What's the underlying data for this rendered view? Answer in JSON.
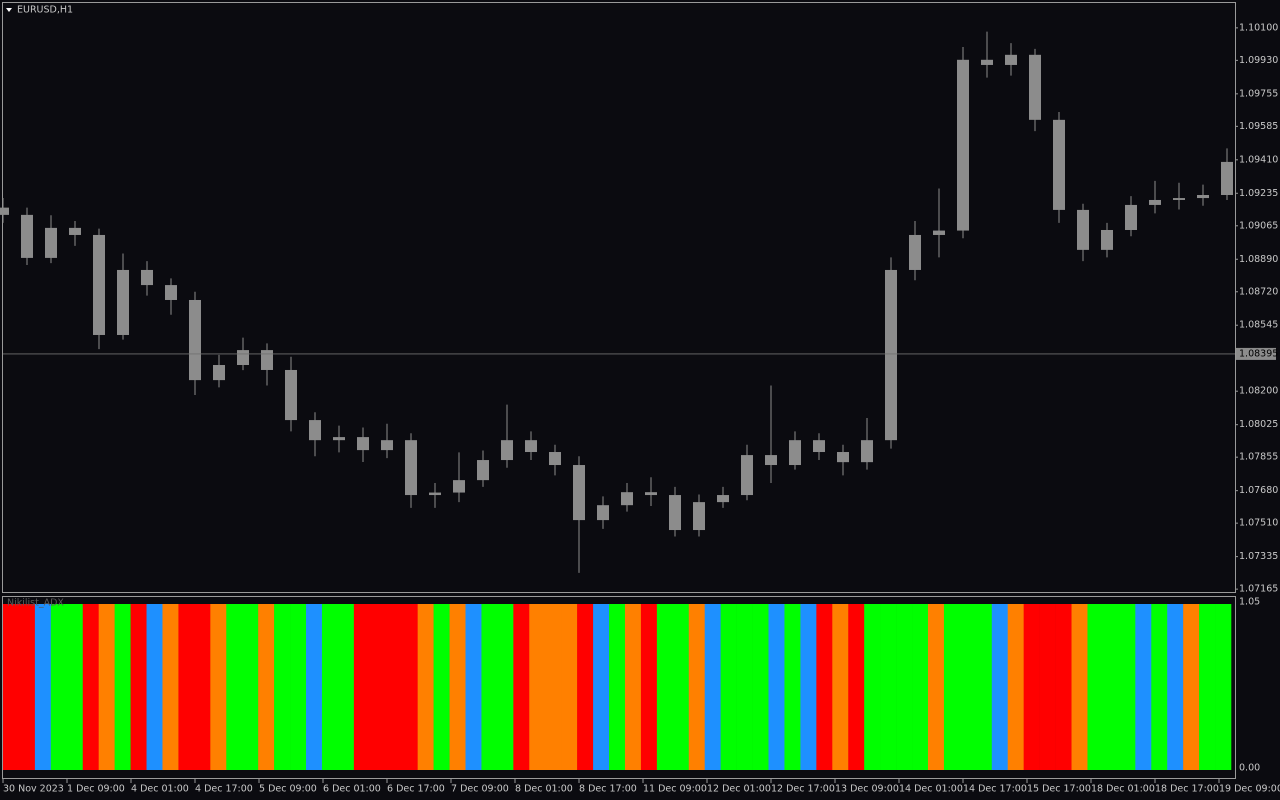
{
  "chart_data": [
    {
      "type": "candlestick",
      "title": "EURUSD,H1",
      "color": "#8c8c8c",
      "x": [
        0,
        6,
        12,
        18,
        24,
        30,
        36,
        42,
        48,
        54,
        60,
        66,
        72,
        78,
        84,
        90,
        96,
        102,
        108,
        114,
        120,
        126,
        132,
        138,
        144,
        150,
        156,
        162,
        168,
        174,
        180,
        186,
        192,
        198,
        204,
        210,
        216,
        222,
        228,
        234,
        240,
        246,
        252,
        258,
        264,
        270,
        276,
        282,
        288,
        294,
        300,
        306
      ],
      "open": [
        1.0916,
        1.09122,
        1.08897,
        1.09054,
        1.09017,
        1.08494,
        1.08834,
        1.08755,
        1.08677,
        1.08258,
        1.08337,
        1.08415,
        1.08311,
        1.08049,
        1.07944,
        1.0796,
        1.07892,
        1.07944,
        1.07657,
        1.0767,
        1.07735,
        1.0784,
        1.07944,
        1.07882,
        1.07814,
        1.07526,
        1.07604,
        1.07672,
        1.07657,
        1.07474,
        1.0762,
        1.07657,
        1.07866,
        1.07814,
        1.07944,
        1.07882,
        1.07829,
        1.07944,
        1.08834,
        1.09017,
        1.0904,
        1.09933,
        1.09906,
        1.09959,
        1.09619,
        1.09148,
        1.08939,
        1.09043,
        1.09174,
        1.092,
        1.0921,
        1.09226
      ],
      "high": [
        1.0921,
        1.0916,
        1.0912,
        1.0909,
        1.0905,
        1.0892,
        1.0888,
        1.0879,
        1.0872,
        1.0839,
        1.0848,
        1.0845,
        1.0838,
        1.0809,
        1.0802,
        1.0801,
        1.0803,
        1.0798,
        1.0772,
        1.0788,
        1.0789,
        1.0813,
        1.0799,
        1.0792,
        1.0786,
        1.0765,
        1.0772,
        1.0775,
        1.077,
        1.0766,
        1.077,
        1.0792,
        1.0823,
        1.0799,
        1.0798,
        1.0792,
        1.0806,
        1.089,
        1.0909,
        1.0926,
        1.1,
        1.1008,
        1.1002,
        1.0999,
        1.0966,
        1.0918,
        1.0908,
        1.0922,
        1.093,
        1.0929,
        1.0928,
        1.0947
      ],
      "low": [
        1.0908,
        1.0886,
        1.0887,
        1.0896,
        1.0842,
        1.0847,
        1.087,
        1.086,
        1.0818,
        1.0822,
        1.0831,
        1.0823,
        1.0799,
        1.0786,
        1.0788,
        1.0783,
        1.0785,
        1.0759,
        1.0759,
        1.0762,
        1.077,
        1.078,
        1.0784,
        1.0776,
        1.0725,
        1.0748,
        1.0757,
        1.076,
        1.0744,
        1.0744,
        1.0759,
        1.0763,
        1.0772,
        1.0779,
        1.0784,
        1.0776,
        1.0779,
        1.079,
        1.0878,
        1.089,
        1.09,
        1.0984,
        1.0985,
        1.0956,
        1.0908,
        1.0888,
        1.089,
        1.0901,
        1.0913,
        1.0915,
        1.0917,
        1.092
      ],
      "close": [
        1.09122,
        1.08897,
        1.09054,
        1.09017,
        1.08494,
        1.08834,
        1.08755,
        1.08677,
        1.08258,
        1.08337,
        1.08415,
        1.08311,
        1.08049,
        1.07944,
        1.0796,
        1.07892,
        1.07944,
        1.07657,
        1.0767,
        1.07735,
        1.0784,
        1.07944,
        1.07882,
        1.07814,
        1.07526,
        1.07604,
        1.07672,
        1.07657,
        1.07474,
        1.0762,
        1.07657,
        1.07866,
        1.07814,
        1.07944,
        1.07882,
        1.07829,
        1.07944,
        1.08834,
        1.09017,
        1.0904,
        1.09933,
        1.09906,
        1.09959,
        1.09619,
        1.09148,
        1.08939,
        1.09043,
        1.09174,
        1.092,
        1.0921,
        1.09226,
        1.09399
      ],
      "xlim": [
        0,
        307
      ],
      "ylim": [
        1.0715,
        1.1023
      ],
      "yticks": [
        {
          "value": 1.101,
          "label": "1.10100"
        },
        {
          "value": 1.0993,
          "label": "1.09930"
        },
        {
          "value": 1.09755,
          "label": "1.09755"
        },
        {
          "value": 1.09585,
          "label": "1.09585"
        },
        {
          "value": 1.0941,
          "label": "1.09410"
        },
        {
          "value": 1.09235,
          "label": "1.09235"
        },
        {
          "value": 1.09065,
          "label": "1.09065"
        },
        {
          "value": 1.0889,
          "label": "1.08890"
        },
        {
          "value": 1.0872,
          "label": "1.08720"
        },
        {
          "value": 1.08545,
          "label": "1.08545"
        },
        {
          "value": 1.082,
          "label": "1.08200"
        },
        {
          "value": 1.08025,
          "label": "1.08025"
        },
        {
          "value": 1.07855,
          "label": "1.07855"
        },
        {
          "value": 1.0768,
          "label": "1.07680"
        },
        {
          "value": 1.0751,
          "label": "1.07510"
        },
        {
          "value": 1.07335,
          "label": "1.07335"
        },
        {
          "value": 1.07165,
          "label": "1.07165"
        }
      ],
      "current_price": {
        "value": 1.08395,
        "label": "1.08395"
      },
      "xticks": [
        {
          "value": 0,
          "label": "30 Nov 2023"
        },
        {
          "value": 16,
          "label": "1 Dec 09:00"
        },
        {
          "value": 32,
          "label": "4 Dec 01:00"
        },
        {
          "value": 48,
          "label": "4 Dec 17:00"
        },
        {
          "value": 64,
          "label": "5 Dec 09:00"
        },
        {
          "value": 80,
          "label": "6 Dec 01:00"
        },
        {
          "value": 96,
          "label": "6 Dec 17:00"
        },
        {
          "value": 112,
          "label": "7 Dec 09:00"
        },
        {
          "value": 128,
          "label": "8 Dec 01:00"
        },
        {
          "value": 144,
          "label": "8 Dec 17:00"
        },
        {
          "value": 160,
          "label": "11 Dec 09:00"
        },
        {
          "value": 176,
          "label": "12 Dec 01:00"
        },
        {
          "value": 192,
          "label": "12 Dec 17:00"
        },
        {
          "value": 208,
          "label": "13 Dec 09:00"
        },
        {
          "value": 224,
          "label": "14 Dec 01:00"
        },
        {
          "value": 240,
          "label": "14 Dec 17:00"
        },
        {
          "value": 256,
          "label": "15 Dec 17:00"
        },
        {
          "value": 272,
          "label": "18 Dec 01:00"
        },
        {
          "value": 288,
          "label": "18 Dec 17:00"
        },
        {
          "value": 304,
          "label": "19 Dec 09:00"
        }
      ]
    },
    {
      "type": "colorbars",
      "title": "Nikilist_ADX",
      "colors": [
        "#ff0000",
        "#ff0000",
        "#1e90ff",
        "#00ff00",
        "#00ff00",
        "#ff0000",
        "#ff8000",
        "#00ff00",
        "#ff0000",
        "#1e90ff",
        "#ff8000",
        "#ff0000",
        "#ff0000",
        "#ff8000",
        "#00ff00",
        "#00ff00",
        "#ff8000",
        "#00ff00",
        "#00ff00",
        "#1e90ff",
        "#00ff00",
        "#00ff00",
        "#ff0000",
        "#ff0000",
        "#ff0000",
        "#ff0000",
        "#ff8000",
        "#00ff00",
        "#ff8000",
        "#1e90ff",
        "#00ff00",
        "#00ff00",
        "#ff0000",
        "#ff8000",
        "#ff8000",
        "#ff8000",
        "#ff0000",
        "#1e90ff",
        "#00ff00",
        "#ff8000",
        "#ff0000",
        "#00ff00",
        "#00ff00",
        "#ff8000",
        "#1e90ff",
        "#00ff00",
        "#00ff00",
        "#00ff00",
        "#1e90ff",
        "#00ff00",
        "#1e90ff",
        "#ff0000",
        "#ff8000",
        "#ff0000",
        "#00ff00",
        "#00ff00",
        "#00ff00",
        "#00ff00",
        "#ff8000",
        "#00ff00",
        "#00ff00",
        "#00ff00",
        "#1e90ff",
        "#ff8000",
        "#ff0000",
        "#ff0000",
        "#ff0000",
        "#ff8000",
        "#00ff00",
        "#00ff00",
        "#00ff00",
        "#1e90ff",
        "#00ff00",
        "#1e90ff",
        "#ff8000",
        "#00ff00",
        "#00ff00"
      ],
      "ylim": [
        0,
        1.05
      ],
      "yticks": [
        {
          "value": 1.05,
          "label": "1.05"
        },
        {
          "value": 0,
          "label": "0.00"
        }
      ]
    }
  ]
}
